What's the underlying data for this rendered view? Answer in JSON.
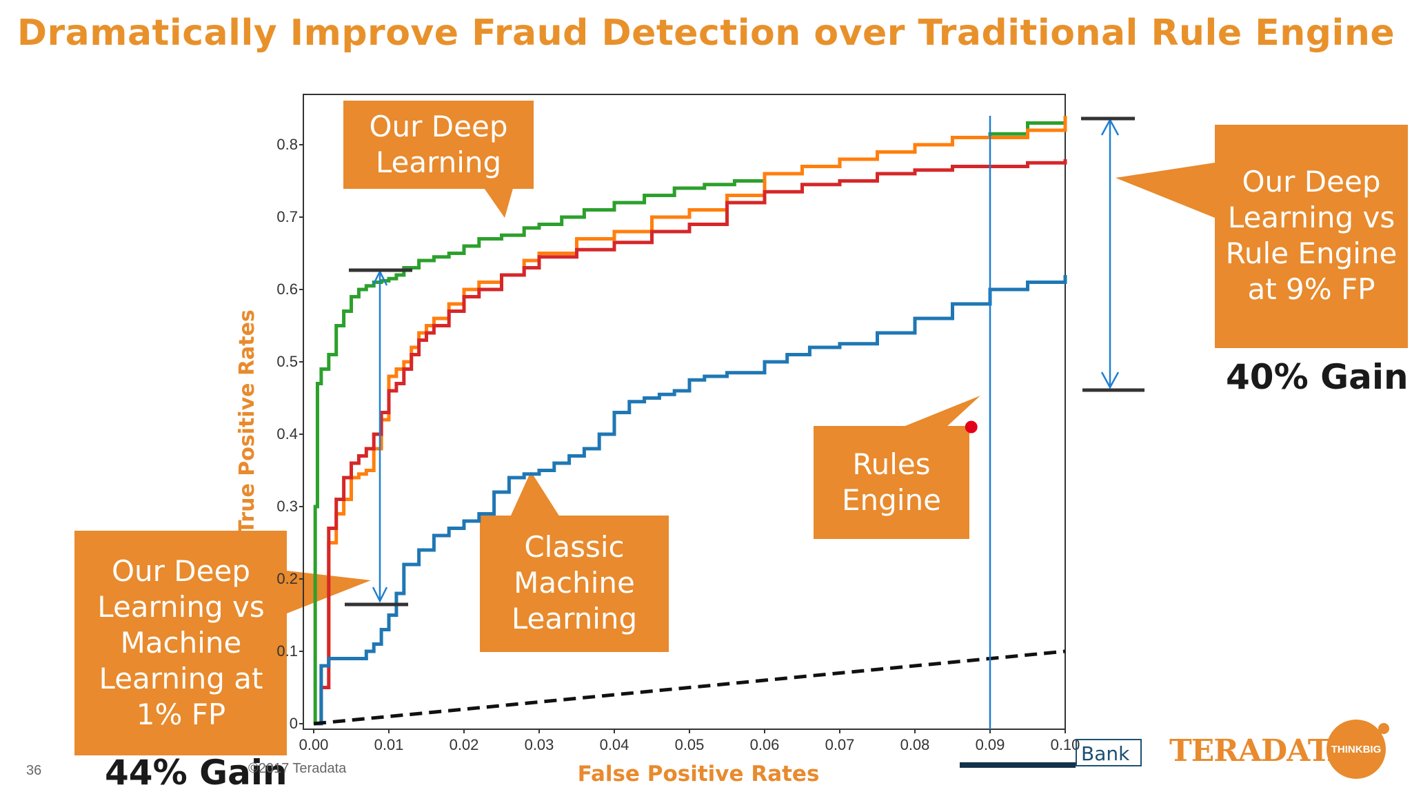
{
  "slide": {
    "title": "Dramatically Improve Fraud Detection over Traditional Rule Engine",
    "page_number": "36",
    "copyright": "©2017 Teradata",
    "bank_logo": "Bank",
    "teradata_logo": "TERADATA.",
    "thinkbig_logo": "THINKBIG"
  },
  "colors": {
    "accent_orange": "#E88A2D",
    "title_orange": "#E8912B",
    "deep_learning_green": "#2CA02C",
    "deep_learning_orange": "#FF7F0E",
    "deep_learning_red": "#D62728",
    "classic_ml_blue": "#1F77B4",
    "rules_engine_point": "#E3001B",
    "marker_line": "#1F7FD0",
    "bar_dark": "#333333"
  },
  "callouts": {
    "deep_learning": "Our Deep Learning",
    "dl_vs_rules": "Our Deep Learning vs Rule Engine at 9% FP",
    "dl_vs_ml": "Our Deep Learning vs Machine Learning at 1% FP",
    "classic_ml": "Classic Machine Learning",
    "rules_engine": "Rules Engine",
    "gain_right": "40% Gain",
    "gain_left": "44% Gain"
  },
  "chart_data": {
    "type": "line",
    "xlabel": "False Positive Rates",
    "ylabel": "True Positive Rates",
    "xlim": [
      0,
      0.1
    ],
    "ylim": [
      0,
      0.85
    ],
    "x_ticks": [
      "0.00",
      "0.01",
      "0.02",
      "0.03",
      "0.04",
      "0.05",
      "0.06",
      "0.07",
      "0.08",
      "0.09",
      "0.10"
    ],
    "y_ticks": [
      "0",
      "0.1",
      "0.2",
      "0.3",
      "0.4",
      "0.5",
      "0.6",
      "0.7",
      "0.8"
    ],
    "y_tick_values": [
      0,
      0.1,
      0.2,
      0.3,
      0.4,
      0.5,
      0.6,
      0.7,
      0.8
    ],
    "series": [
      {
        "color": "#2CA02C",
        "x": [
          0,
          0.0002,
          0.0005,
          0.001,
          0.002,
          0.003,
          0.004,
          0.005,
          0.006,
          0.007,
          0.008,
          0.009,
          0.01,
          0.011,
          0.012,
          0.014,
          0.016,
          0.018,
          0.02,
          0.022,
          0.025,
          0.028,
          0.03,
          0.033,
          0.036,
          0.04,
          0.044,
          0.048,
          0.052,
          0.056,
          0.06,
          0.065,
          0.07,
          0.075,
          0.08,
          0.085,
          0.09,
          0.095,
          0.1
        ],
        "y": [
          0,
          0.3,
          0.47,
          0.49,
          0.51,
          0.55,
          0.57,
          0.59,
          0.6,
          0.605,
          0.61,
          0.612,
          0.615,
          0.62,
          0.63,
          0.64,
          0.645,
          0.65,
          0.66,
          0.67,
          0.675,
          0.685,
          0.69,
          0.7,
          0.71,
          0.72,
          0.73,
          0.74,
          0.745,
          0.75,
          0.76,
          0.77,
          0.78,
          0.79,
          0.8,
          0.81,
          0.815,
          0.83,
          0.84
        ]
      },
      {
        "color": "#FF7F0E",
        "x": [
          0,
          0.001,
          0.002,
          0.003,
          0.004,
          0.005,
          0.006,
          0.007,
          0.008,
          0.009,
          0.01,
          0.011,
          0.012,
          0.013,
          0.014,
          0.015,
          0.016,
          0.018,
          0.02,
          0.022,
          0.025,
          0.028,
          0.03,
          0.035,
          0.04,
          0.045,
          0.05,
          0.055,
          0.06,
          0.065,
          0.07,
          0.075,
          0.08,
          0.085,
          0.09,
          0.095,
          0.1
        ],
        "y": [
          0,
          0.08,
          0.25,
          0.29,
          0.31,
          0.34,
          0.345,
          0.35,
          0.38,
          0.42,
          0.48,
          0.49,
          0.5,
          0.52,
          0.54,
          0.55,
          0.56,
          0.58,
          0.6,
          0.61,
          0.62,
          0.64,
          0.65,
          0.67,
          0.68,
          0.7,
          0.71,
          0.73,
          0.76,
          0.77,
          0.78,
          0.79,
          0.8,
          0.81,
          0.81,
          0.82,
          0.84
        ]
      },
      {
        "color": "#D62728",
        "x": [
          0,
          0.001,
          0.002,
          0.003,
          0.004,
          0.005,
          0.006,
          0.007,
          0.008,
          0.009,
          0.01,
          0.011,
          0.012,
          0.013,
          0.014,
          0.015,
          0.016,
          0.018,
          0.02,
          0.022,
          0.025,
          0.028,
          0.03,
          0.035,
          0.04,
          0.045,
          0.05,
          0.055,
          0.06,
          0.065,
          0.07,
          0.075,
          0.08,
          0.085,
          0.09,
          0.095,
          0.1
        ],
        "y": [
          0,
          0.05,
          0.27,
          0.31,
          0.34,
          0.36,
          0.37,
          0.38,
          0.4,
          0.43,
          0.46,
          0.47,
          0.49,
          0.51,
          0.53,
          0.54,
          0.55,
          0.57,
          0.59,
          0.6,
          0.62,
          0.63,
          0.645,
          0.655,
          0.665,
          0.68,
          0.69,
          0.72,
          0.735,
          0.745,
          0.75,
          0.76,
          0.765,
          0.77,
          0.77,
          0.775,
          0.78
        ]
      },
      {
        "color": "#1F77B4",
        "x": [
          0,
          0.001,
          0.002,
          0.003,
          0.004,
          0.005,
          0.006,
          0.007,
          0.008,
          0.009,
          0.01,
          0.011,
          0.012,
          0.014,
          0.016,
          0.018,
          0.02,
          0.022,
          0.024,
          0.026,
          0.028,
          0.03,
          0.032,
          0.034,
          0.036,
          0.038,
          0.04,
          0.042,
          0.044,
          0.046,
          0.048,
          0.05,
          0.052,
          0.055,
          0.06,
          0.063,
          0.066,
          0.07,
          0.075,
          0.08,
          0.085,
          0.09,
          0.095,
          0.1
        ],
        "y": [
          0,
          0.08,
          0.09,
          0.09,
          0.09,
          0.09,
          0.09,
          0.1,
          0.11,
          0.13,
          0.15,
          0.18,
          0.22,
          0.24,
          0.26,
          0.27,
          0.28,
          0.29,
          0.32,
          0.34,
          0.345,
          0.35,
          0.36,
          0.37,
          0.38,
          0.4,
          0.43,
          0.445,
          0.45,
          0.455,
          0.46,
          0.475,
          0.48,
          0.485,
          0.5,
          0.51,
          0.52,
          0.525,
          0.54,
          0.56,
          0.58,
          0.6,
          0.61,
          0.62
        ]
      },
      {
        "color": "#111111",
        "dashed": true,
        "x": [
          0,
          0.1
        ],
        "y": [
          0,
          0.1
        ]
      }
    ],
    "points": [
      {
        "x": 0.0875,
        "y": 0.45,
        "color": "#E3001B"
      }
    ],
    "vertical_lines": [
      0.09,
      0.01
    ]
  }
}
